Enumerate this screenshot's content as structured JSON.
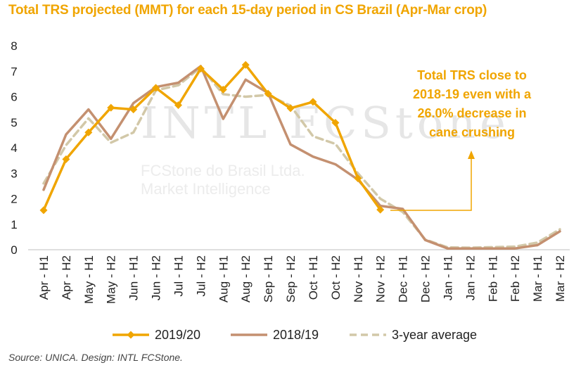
{
  "title": "Total TRS projected (MMT) for each 15-day period in CS Brazil (Apr-Mar crop)",
  "source": "Source: UNICA. Design: INTL FCStone.",
  "watermark": {
    "logo": "INTL FCStone",
    "line1": "FCStone do Brasil Ltda.",
    "line2": "Market Intelligence"
  },
  "annotation": [
    "Total TRS close to",
    "2018-19  even with a",
    "26.0% decrease in",
    "cane crushing"
  ],
  "colors": {
    "s2019": "#F0A500",
    "s2018": "#C49070",
    "avg": "#D2C8A8",
    "axis": "#bfbfbf",
    "grid": "#e6e6e6"
  },
  "chart_data": {
    "type": "line",
    "ylim": [
      0,
      8
    ],
    "yticks": [
      0,
      1,
      2,
      3,
      4,
      5,
      6,
      7,
      8
    ],
    "categories": [
      "Apr - H1",
      "Apr - H2",
      "May - H1",
      "May - H2",
      "Jun - H1",
      "Jun - H2",
      "Jul - H1",
      "Jul - H2",
      "Aug - H1",
      "Aug - H2",
      "Sep - H1",
      "Sep - H2",
      "Oct - H1",
      "Oct - H2",
      "Nov - H1",
      "Nov - H2",
      "Dec - H1",
      "Dec - H2",
      "Jan - H1",
      "Jan - H2",
      "Feb - H1",
      "Feb - H2",
      "Mar - H1",
      "Mar - H2"
    ],
    "series": [
      {
        "name": "2019/20",
        "style": "solid-diamond",
        "values": [
          1.55,
          3.55,
          4.6,
          5.57,
          5.5,
          6.35,
          5.67,
          7.1,
          6.28,
          7.25,
          6.12,
          5.55,
          5.8,
          4.98,
          2.8,
          1.57,
          null,
          null,
          null,
          null,
          null,
          null,
          null,
          null
        ]
      },
      {
        "name": "2018/19",
        "style": "solid",
        "values": [
          2.35,
          4.52,
          5.5,
          4.35,
          5.75,
          6.38,
          6.55,
          7.2,
          5.13,
          6.67,
          6.15,
          4.13,
          3.65,
          3.35,
          2.75,
          1.72,
          1.6,
          0.38,
          0.05,
          0.05,
          0.05,
          0.05,
          0.18,
          0.72
        ]
      },
      {
        "name": "3-year average",
        "style": "dashed",
        "values": [
          2.6,
          4.1,
          5.15,
          4.2,
          4.6,
          6.25,
          6.45,
          7.15,
          6.1,
          6.0,
          6.07,
          5.65,
          4.45,
          4.15,
          3.0,
          2.0,
          1.48,
          0.4,
          0.09,
          0.08,
          0.1,
          0.12,
          0.28,
          0.8
        ]
      }
    ]
  }
}
